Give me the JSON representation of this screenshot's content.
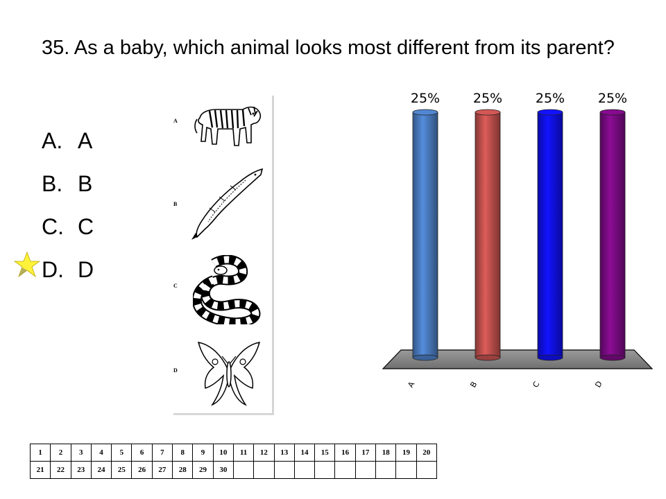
{
  "question": {
    "text": "35.  As a baby, which animal looks most different from its parent?"
  },
  "options": [
    {
      "letter": "A.",
      "text": "A"
    },
    {
      "letter": "B.",
      "text": "B"
    },
    {
      "letter": "C.",
      "text": "C"
    },
    {
      "letter": "D.",
      "text": "D"
    }
  ],
  "correct_marker": {
    "icon": "star-icon",
    "color": "#fff23a",
    "answer": "D"
  },
  "image_panel": {
    "labels": [
      "A",
      "B",
      "C",
      "D"
    ],
    "icons": [
      "tiger-icon",
      "whale-icon",
      "snake-icon",
      "moth-icon"
    ]
  },
  "chart_data": {
    "type": "bar",
    "categories": [
      "A",
      "B",
      "C",
      "D"
    ],
    "values": [
      25,
      25,
      25,
      25
    ],
    "value_labels": [
      "25%",
      "25%",
      "25%",
      "25%"
    ],
    "colors": [
      "#4a7bbf",
      "#c0504d",
      "#1010ee",
      "#7a0a82"
    ],
    "ylim": [
      0,
      25
    ],
    "grid": false
  },
  "number_grid": {
    "rows": [
      [
        "1",
        "2",
        "3",
        "4",
        "5",
        "6",
        "7",
        "8",
        "9",
        "10",
        "11",
        "12",
        "13",
        "14",
        "15",
        "16",
        "17",
        "18",
        "19",
        "20"
      ],
      [
        "21",
        "22",
        "23",
        "24",
        "25",
        "26",
        "27",
        "28",
        "29",
        "30",
        "",
        "",
        "",
        "",
        "",
        "",
        "",
        "",
        "",
        ""
      ]
    ]
  }
}
